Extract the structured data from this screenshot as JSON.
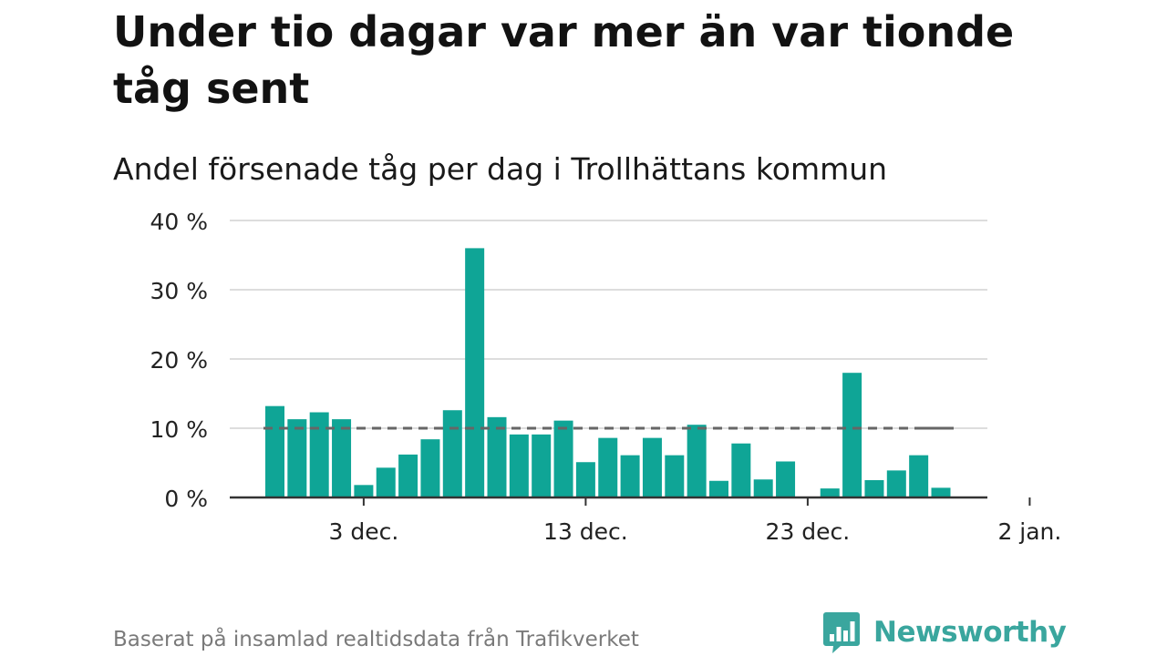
{
  "header": {
    "title": "Under tio dagar var mer än var tionde tåg sent",
    "subtitle": "Andel försenade tåg per dag i Trollhättans kommun"
  },
  "footer": {
    "source": "Baserat på insamlad realtidsdata från Trafikverket",
    "brand": "Newsworthy"
  },
  "colors": {
    "bar": "#0fa596",
    "reference_line": "#666666",
    "grid": "#dddddd",
    "axis": "#333333",
    "brand": "#3aa69e"
  },
  "chart_data": {
    "type": "bar",
    "ylim": [
      0,
      40
    ],
    "y_ticks": [
      0,
      10,
      20,
      30,
      40
    ],
    "y_tick_labels": [
      "0 %",
      "10 %",
      "20 %",
      "30 %",
      "40 %"
    ],
    "x_tick_labels": [
      "3 dec.",
      "13 dec.",
      "23 dec.",
      "2 jan."
    ],
    "x_tick_dates": [
      "2023-12-03",
      "2023-12-13",
      "2023-12-23",
      "2024-01-02"
    ],
    "grid": true,
    "reference_line": 10,
    "dates": [
      "2023-11-29",
      "2023-11-30",
      "2023-12-01",
      "2023-12-02",
      "2023-12-03",
      "2023-12-04",
      "2023-12-05",
      "2023-12-06",
      "2023-12-07",
      "2023-12-08",
      "2023-12-09",
      "2023-12-10",
      "2023-12-11",
      "2023-12-12",
      "2023-12-13",
      "2023-12-14",
      "2023-12-15",
      "2023-12-16",
      "2023-12-17",
      "2023-12-18",
      "2023-12-19",
      "2023-12-20",
      "2023-12-21",
      "2023-12-22",
      "2023-12-23",
      "2023-12-24",
      "2023-12-25",
      "2023-12-26",
      "2023-12-27",
      "2023-12-28",
      "2023-12-29",
      "2023-12-30",
      "2023-12-31"
    ],
    "values": [
      13.2,
      11.3,
      12.3,
      11.3,
      1.8,
      4.3,
      6.2,
      8.4,
      12.6,
      36.0,
      11.6,
      9.1,
      9.1,
      11.1,
      5.1,
      8.6,
      6.1,
      8.6,
      6.1,
      10.5,
      2.4,
      7.8,
      2.6,
      5.2,
      0,
      1.3,
      18.0,
      2.5,
      3.9,
      6.1,
      1.4,
      0,
      0
    ]
  }
}
